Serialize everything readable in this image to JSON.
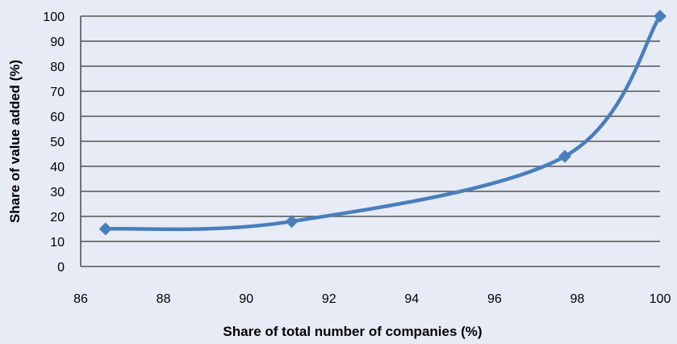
{
  "chart_data": {
    "type": "line",
    "title": "",
    "xlabel": "Share of total number of companies (%)",
    "ylabel": "Share of value added (%)",
    "xlim": [
      86,
      100
    ],
    "ylim": [
      0,
      100
    ],
    "x_ticks": [
      "86",
      "88",
      "90",
      "92",
      "94",
      "96",
      "98",
      "100"
    ],
    "y_ticks": [
      "0",
      "10",
      "20",
      "30",
      "40",
      "50",
      "60",
      "70",
      "80",
      "90",
      "100"
    ],
    "grid": "horizontal",
    "legend": "none",
    "smooth": true,
    "series": [
      {
        "x": [
          86.6,
          91.1,
          97.7,
          100
        ],
        "y": [
          15,
          18,
          44,
          100
        ],
        "color": "#4a7ebb",
        "marker": "diamond"
      }
    ]
  }
}
